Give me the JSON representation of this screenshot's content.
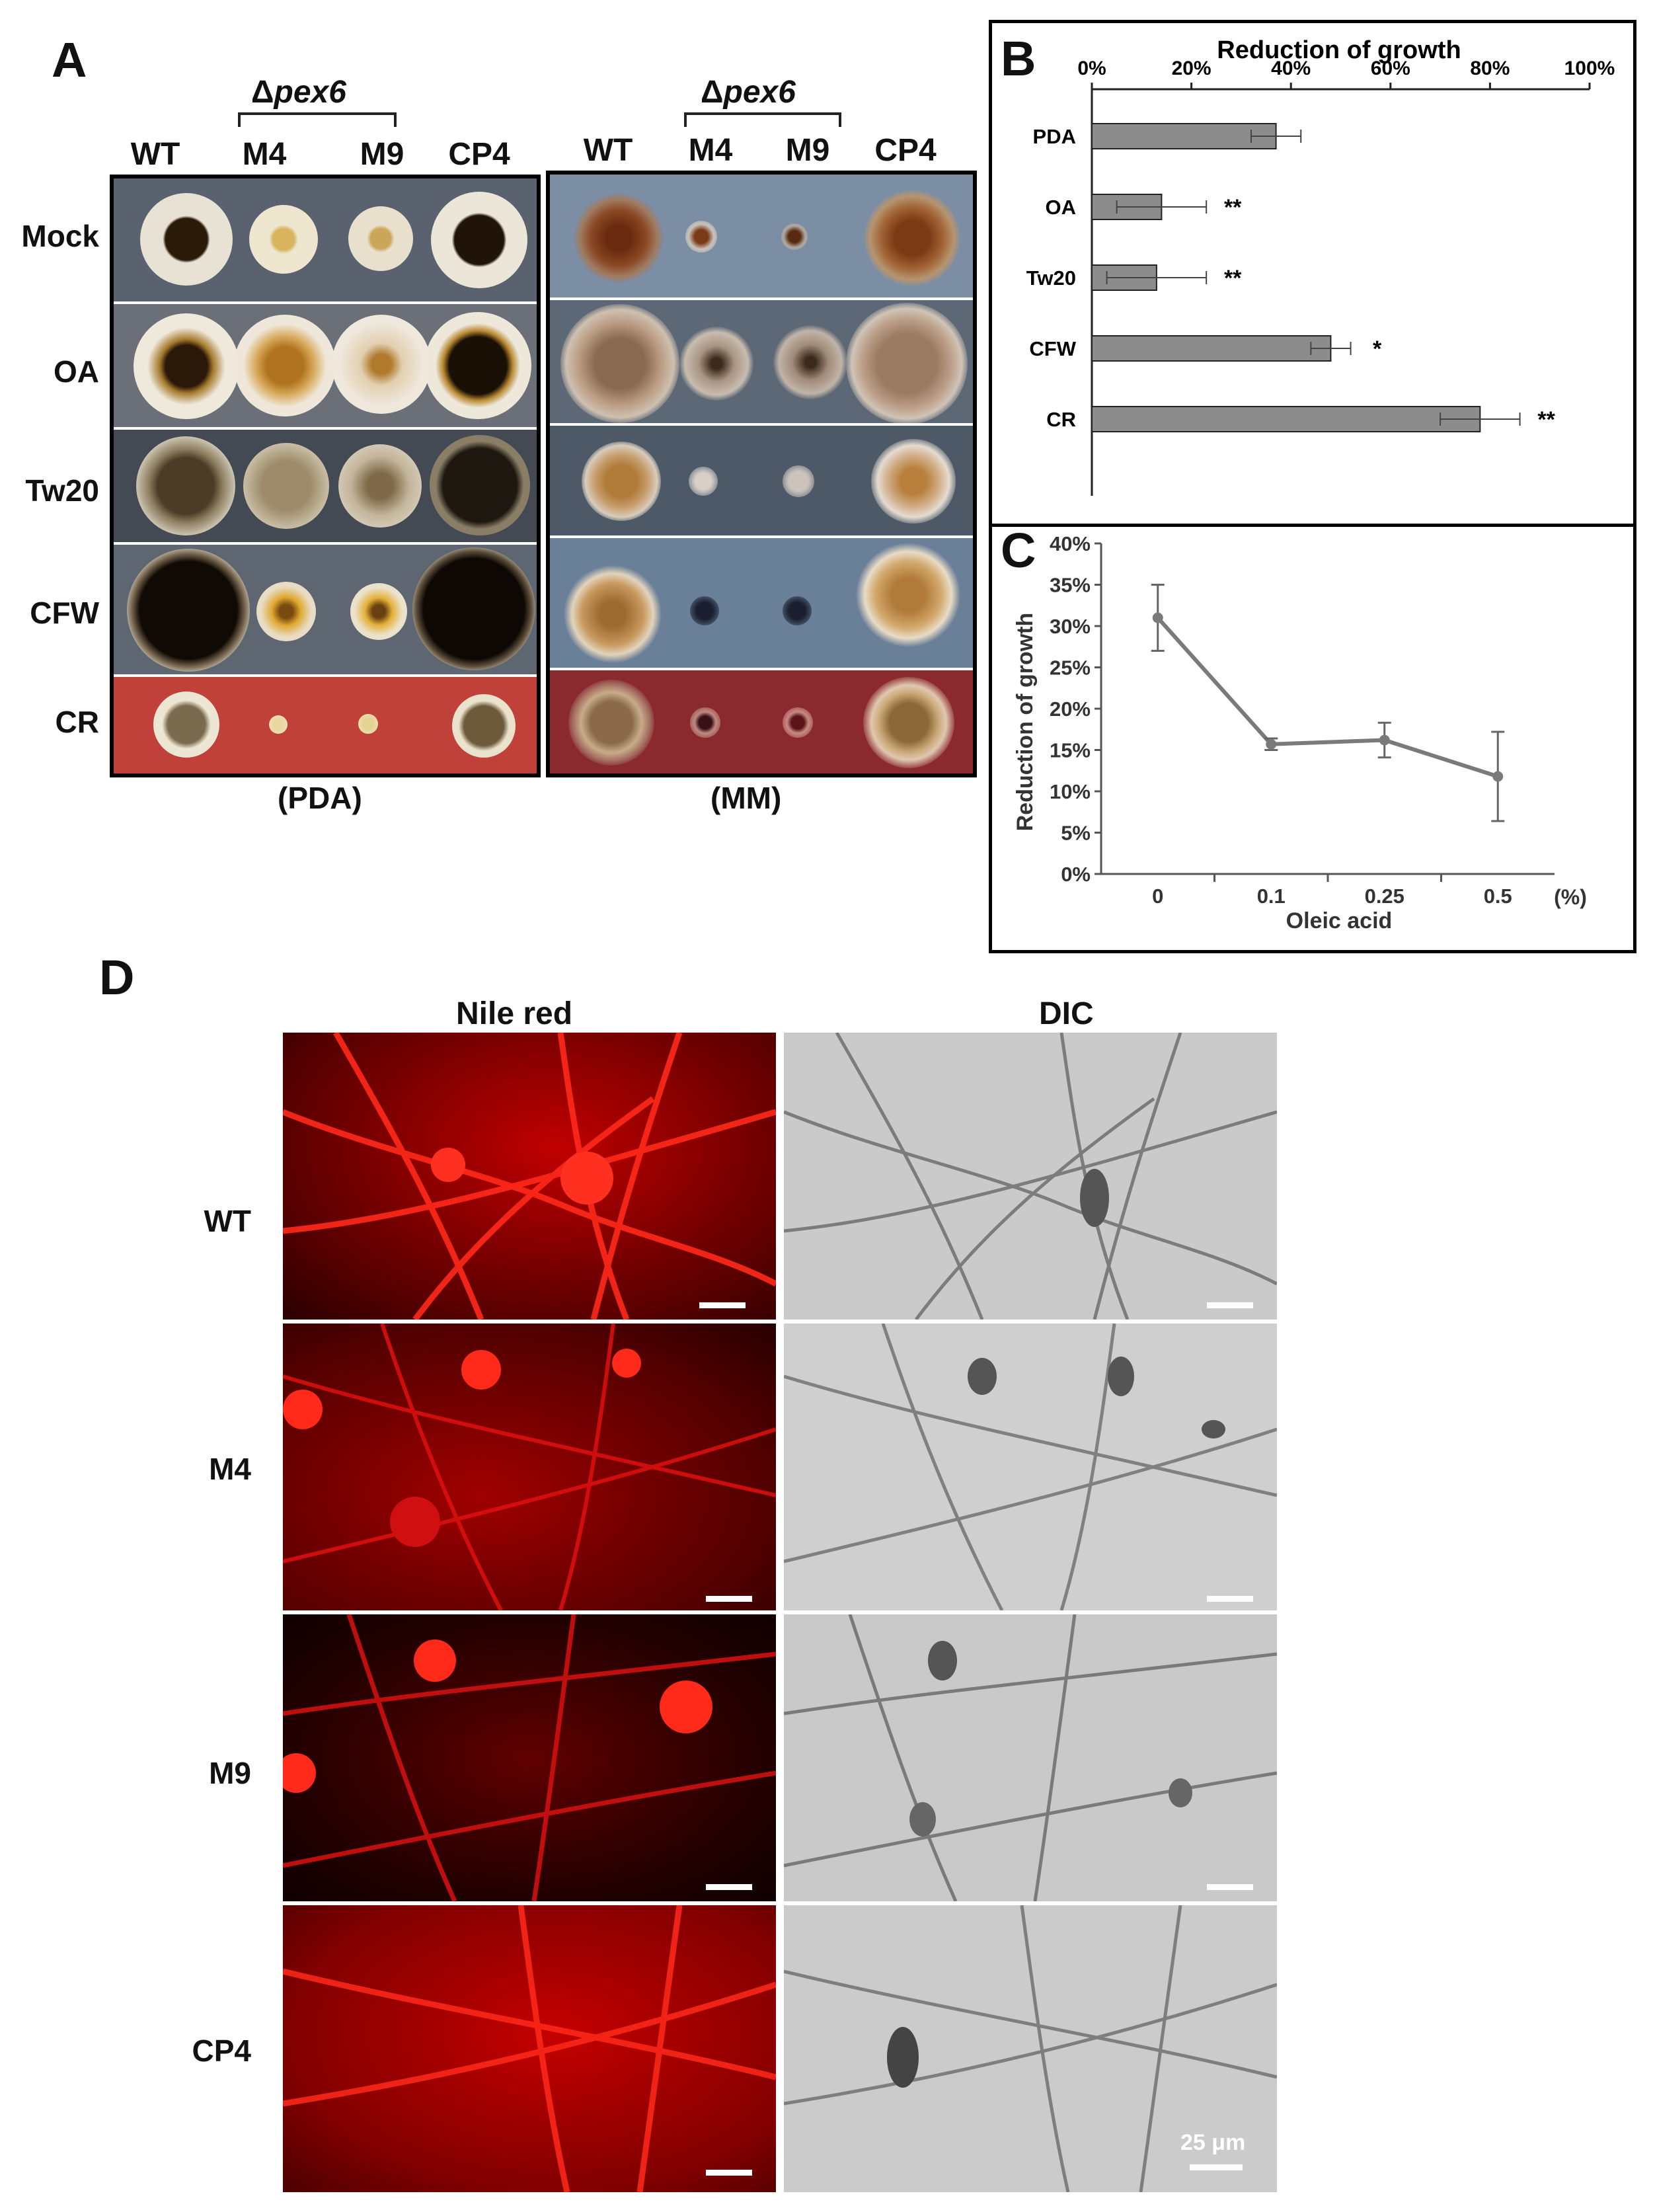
{
  "panels": {
    "a": "A",
    "b": "B",
    "c": "C",
    "d": "D"
  },
  "panelA": {
    "group_label": "Δpex6",
    "group_prefix": "Δ",
    "group_gene": "pex6",
    "columns": [
      "WT",
      "M4",
      "M9",
      "CP4"
    ],
    "rows": [
      "Mock",
      "OA",
      "Tw20",
      "CFW",
      "CR"
    ],
    "pda_label": "(PDA)",
    "mm_label": "(MM)"
  },
  "chart_data": [
    {
      "type": "bar",
      "orientation": "horizontal",
      "title": "Reduction of growth",
      "categories": [
        "PDA",
        "OA",
        "Tw20",
        "CFW",
        "CR"
      ],
      "values": [
        37,
        14,
        13,
        48,
        78
      ],
      "errors": [
        5,
        9,
        10,
        4,
        8
      ],
      "significance": [
        "",
        "**",
        "**",
        "*",
        "**"
      ],
      "x_ticks": [
        "0%",
        "20%",
        "40%",
        "60%",
        "80%",
        "100%"
      ],
      "xlim": [
        0,
        100
      ],
      "bar_color": "#8c8c8c"
    },
    {
      "type": "line",
      "x_categories": [
        "0",
        "0.1",
        "0.25",
        "0.5"
      ],
      "x_unit": "(%)",
      "y": [
        31,
        15.7,
        16.2,
        11.8
      ],
      "errors": [
        4,
        0.7,
        2.1,
        5.4
      ],
      "xlabel": "Oleic acid",
      "ylabel": "Reduction of growth",
      "y_ticks": [
        "0%",
        "5%",
        "10%",
        "15%",
        "20%",
        "25%",
        "30%",
        "35%",
        "40%"
      ],
      "ylim": [
        0,
        40
      ],
      "line_color": "#7a7a7a"
    }
  ],
  "panelD": {
    "col_labels": [
      "Nile red",
      "DIC"
    ],
    "rows": [
      "WT",
      "M4",
      "M9",
      "CP4"
    ],
    "scale_label": "25 μm"
  },
  "colors": {
    "nile_red": "#e00000",
    "dic_gray": "#c8c8c8",
    "cr_plate": "#c0403a",
    "mm_cr_plate": "#8a2a2e"
  }
}
